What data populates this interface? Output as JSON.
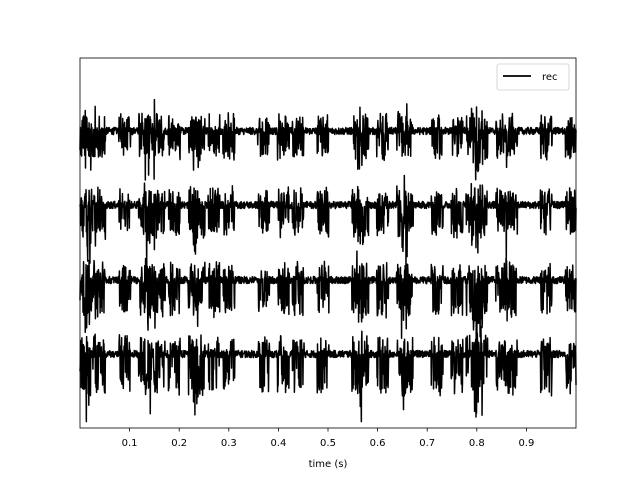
{
  "chart_data": {
    "type": "line",
    "title": "",
    "xlabel": "time (s)",
    "ylabel": "",
    "xlim": [
      0.0,
      1.0
    ],
    "x_ticks": [
      "0.1",
      "0.2",
      "0.3",
      "0.4",
      "0.5",
      "0.6",
      "0.7",
      "0.8",
      "0.9"
    ],
    "y_ticks": [],
    "grid": false,
    "legend": {
      "entries": [
        "rec"
      ],
      "placement": "top-right"
    },
    "line_color": "#000000",
    "series": [
      {
        "name": "rec",
        "traces": 4,
        "baseline_level": 0.0,
        "noise_amplitude": 0.04,
        "spike_times": [
          0.01,
          0.02,
          0.04,
          0.09,
          0.13,
          0.14,
          0.16,
          0.19,
          0.23,
          0.24,
          0.27,
          0.3,
          0.37,
          0.41,
          0.44,
          0.49,
          0.56,
          0.57,
          0.61,
          0.65,
          0.66,
          0.72,
          0.76,
          0.79,
          0.8,
          0.81,
          0.85,
          0.87,
          0.94,
          0.99
        ]
      }
    ]
  }
}
